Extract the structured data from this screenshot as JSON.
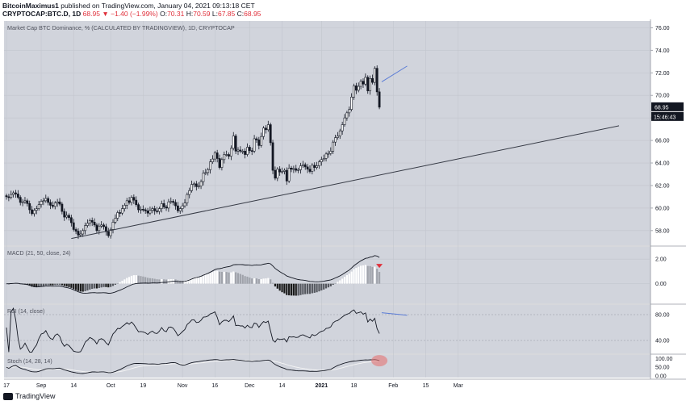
{
  "header": {
    "author": "BitcoinMaximus1",
    "published": "published on TradingView.com, January 04, 2021 09:13:18 CET",
    "symbol": "CRYPTOCAP:BTC.D, 1D",
    "last": "68.95",
    "change": "▼ −1.40 (−1.99%)",
    "o_label": "O:",
    "o": "70.31",
    "h_label": "H:",
    "h": "70.59",
    "l_label": "L:",
    "l": "67.85",
    "c_label": "C:",
    "c": "68.95"
  },
  "footer": {
    "brand": "TradingView"
  },
  "colors": {
    "pane_bg": "#d1d4dc",
    "grid": "#c3c6ce",
    "candle_up": "#ffffff",
    "candle_down": "#131722",
    "macd_hist_neg": "#1a1a1a",
    "macd_hist_pos": "#ffffff",
    "macd_hist_fading": "#a0a3ab",
    "trendline": "#363a45",
    "divergence": "#5b7cd6",
    "marker_red": "#e0303b",
    "stoch_highlight": "#e57373"
  },
  "chart_data": [
    {
      "type": "candlestick",
      "title": "Market Cap BTC Dominance, % (CALCULATED BY TRADINGVIEW), 1D, CRYPTOCAP",
      "x_tick_labels": [
        "17",
        "Sep",
        "14",
        "Oct",
        "19",
        "Nov",
        "16",
        "Dec",
        "14",
        "2021",
        "18",
        "Feb",
        "15",
        "Mar"
      ],
      "x_tick_bar_index": [
        0,
        15,
        29,
        45,
        59,
        76,
        90,
        105,
        119,
        136,
        150,
        167,
        181,
        195
      ],
      "y_ticks": [
        58,
        60,
        62,
        64,
        66,
        68,
        70,
        72,
        74,
        76
      ],
      "y_tick_labels": [
        "58.00",
        "60.00",
        "62.00",
        "64.00",
        "66.00",
        "68.00",
        "70.00",
        "72.00",
        "74.00",
        "76.00"
      ],
      "ylim": [
        56.7,
        76.6
      ],
      "price_label": "68.95",
      "countdown_label": "15:46:43",
      "closes": [
        61.0,
        60.95,
        61.2,
        61.35,
        61.25,
        60.95,
        60.5,
        60.55,
        60.65,
        60.4,
        59.85,
        59.5,
        59.8,
        59.95,
        60.3,
        60.6,
        60.65,
        60.85,
        60.5,
        60.25,
        60.15,
        60.45,
        60.55,
        60.35,
        59.7,
        59.2,
        59.35,
        59.15,
        58.7,
        58.1,
        57.95,
        57.6,
        57.7,
        58.0,
        58.45,
        58.65,
        58.9,
        58.75,
        58.5,
        58.0,
        58.4,
        58.5,
        58.35,
        57.9,
        57.55,
        58.1,
        58.75,
        59.1,
        59.6,
        59.55,
        59.95,
        60.25,
        60.65,
        60.5,
        60.95,
        60.7,
        60.3,
        59.85,
        59.9,
        59.85,
        59.75,
        59.55,
        59.8,
        59.95,
        59.75,
        59.7,
        59.95,
        60.4,
        60.1,
        60.0,
        60.55,
        60.6,
        60.5,
        60.2,
        59.75,
        59.95,
        60.2,
        60.45,
        61.2,
        61.55,
        62.1,
        62.15,
        61.9,
        61.95,
        62.35,
        63.1,
        63.15,
        63.4,
        64.1,
        64.35,
        64.9,
        64.4,
        63.6,
        64.3,
        64.75,
        64.75,
        64.6,
        65.3,
        66.4,
        65.05,
        65.15,
        65.05,
        65.05,
        64.75,
        65.4,
        65.1,
        65.05,
        66.15,
        66.05,
        65.55,
        66.35,
        67.1,
        66.95,
        67.4,
        65.8,
        63.35,
        62.65,
        63.45,
        63.2,
        63.25,
        63.35,
        62.4,
        63.55,
        63.45,
        63.5,
        63.35,
        63.4,
        63.75,
        63.85,
        63.65,
        63.45,
        63.25,
        63.8,
        63.6,
        63.75,
        64.1,
        64.3,
        64.4,
        64.8,
        64.85,
        65.05,
        65.85,
        66.25,
        66.4,
        66.85,
        67.4,
        68.0,
        68.45,
        68.75,
        69.85,
        70.85,
        70.45,
        70.8,
        71.25,
        71.0,
        71.6,
        70.4,
        71.5,
        71.15,
        72.4,
        70.31,
        68.95
      ],
      "indicators": [
        {
          "name": "MACD (21, 50, close, 24)",
          "y_tick_labels": [
            "2.00",
            "0.00"
          ],
          "y_ticks": [
            2,
            0
          ],
          "ylim": [
            -1.6,
            3.0
          ]
        },
        {
          "name": "RSI (14, close)",
          "y_tick_labels": [
            "80.00",
            "40.00"
          ],
          "y_ticks": [
            80,
            40
          ],
          "ylim": [
            20,
            95
          ]
        },
        {
          "name": "Stoch (14, 28, 14)",
          "y_tick_labels": [
            "100.00",
            "50.00",
            "0.00"
          ],
          "y_ticks": [
            100,
            50,
            0
          ],
          "ylim": [
            -10,
            120
          ]
        }
      ]
    }
  ]
}
